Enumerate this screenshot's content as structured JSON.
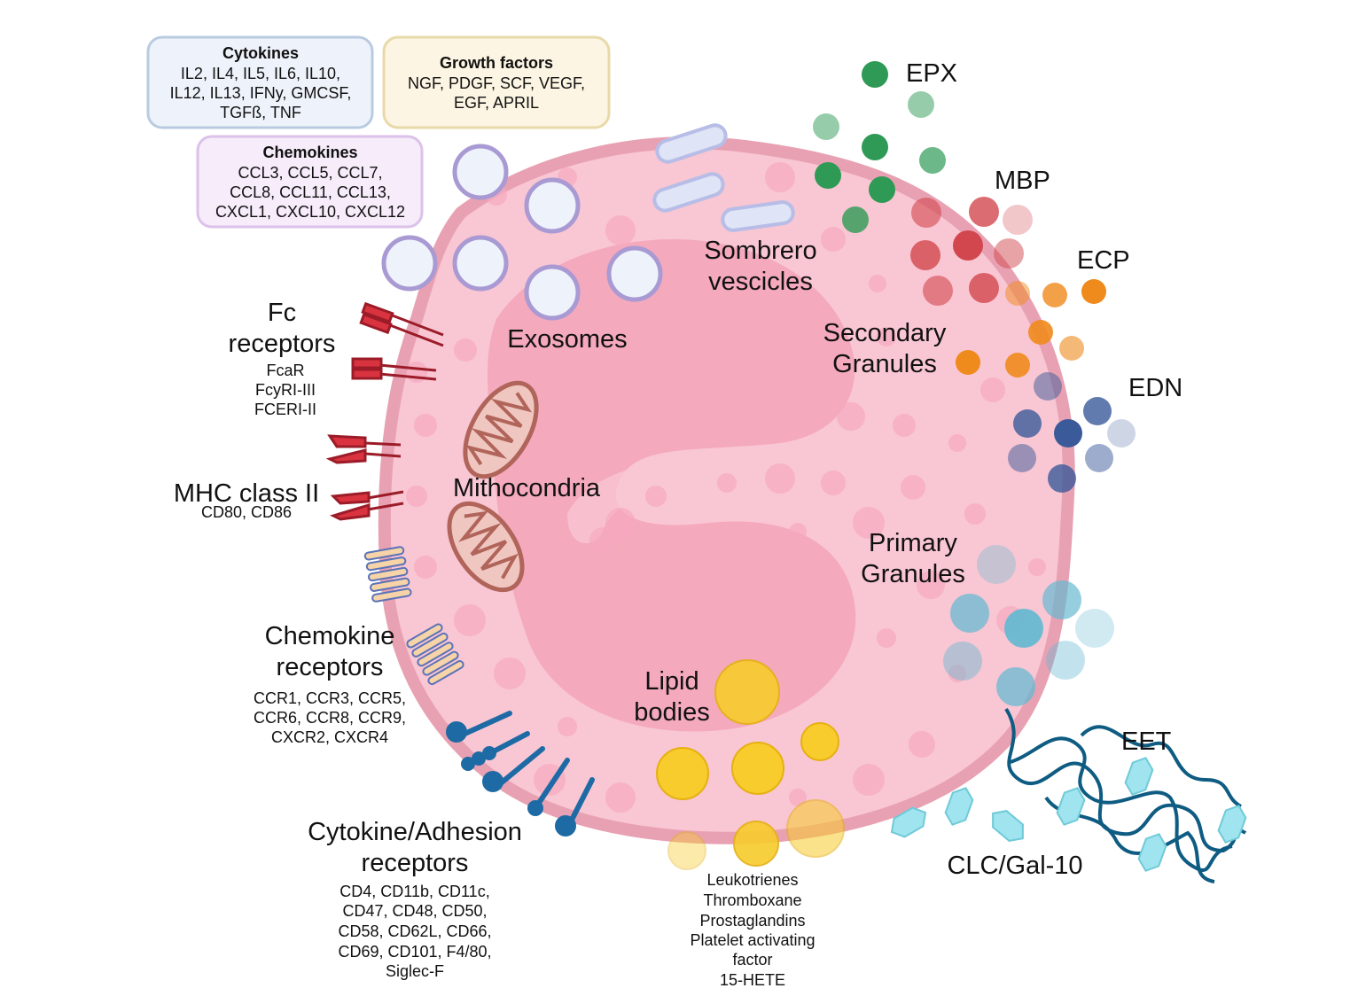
{
  "boxes": {
    "cytokines": {
      "title": "Cytokines",
      "lines": [
        "IL2, IL4, IL5, IL6, IL10,",
        "IL12, IL13, IFNy, GMCSF,",
        "TGFß, TNF"
      ]
    },
    "growth_factors": {
      "title": "Growth factors",
      "lines": [
        "NGF, PDGF, SCF, VEGF,",
        "EGF, APRIL"
      ]
    },
    "chemokines": {
      "title": "Chemokines",
      "lines": [
        "CCL3, CCL5, CCL7,",
        "CCL8, CCL11, CCL13,",
        "CXCL1, CXCL10, CXCL12"
      ]
    }
  },
  "labels": {
    "fc_receptors": {
      "lines": [
        "Fc",
        "receptors"
      ],
      "sub": [
        "FcaR",
        "FcyRI-III",
        "FCERI-II"
      ]
    },
    "mhc": {
      "title": "MHC class II",
      "sub": "CD80, CD86"
    },
    "chemokine_receptors": {
      "lines": [
        "Chemokine",
        "receptors"
      ],
      "sub": [
        "CCR1, CCR3, CCR5,",
        "CCR6, CCR8, CCR9,",
        "CXCR2, CXCR4"
      ]
    },
    "cytokine_adhesion": {
      "lines": [
        "Cytokine/Adhesion",
        "receptors"
      ],
      "sub": [
        "CD4, CD11b, CD11c,",
        "CD47, CD48, CD50,",
        "CD58, CD62L, CD66,",
        "CD69, CD101, F4/80,",
        "Siglec-F"
      ]
    },
    "lipid_mediators": [
      "Leukotrienes",
      "Thromboxane",
      "Prostaglandins",
      "Platelet activating",
      "factor",
      "15-HETE"
    ],
    "exosomes": "Exosomes",
    "sombrero": [
      "Sombrero",
      "vescicles"
    ],
    "mitochondria": "Mithocondria",
    "secondary": [
      "Secondary",
      "Granules"
    ],
    "primary": [
      "Primary",
      "Granules"
    ],
    "lipid_bodies": [
      "Lipid",
      "bodies"
    ],
    "epx": "EPX",
    "mbp": "MBP",
    "ecp": "ECP",
    "edn": "EDN",
    "eet": "EET",
    "clc": "CLC/Gal-10"
  },
  "colors": {
    "cell": "#f9c6d3",
    "membrane": "#e8a1b2",
    "nucleus": "#f4a9bd",
    "epx": "#2e9a55",
    "mbp": "#d2474e",
    "ecp": "#ef8a1c",
    "edn": "#3b5a9a",
    "primary": "#67b9d1",
    "lipid": "#f7cc2c",
    "receptor_red": "#d9333f",
    "receptor_blue": "#1e6aa5",
    "dna": "#0f5c82",
    "clc": "#9fe4ee"
  }
}
